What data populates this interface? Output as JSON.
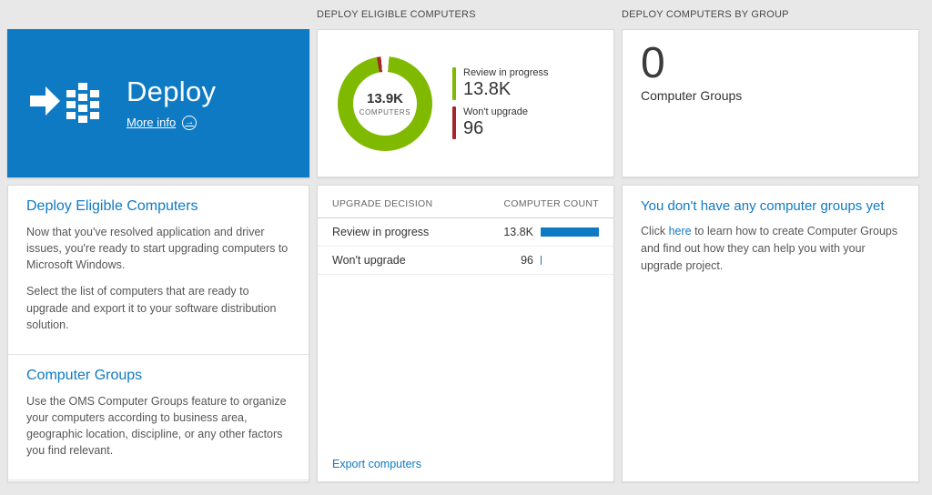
{
  "colors": {
    "accent_blue": "#0f7ac4",
    "tile_blue": "#0f7ac4",
    "green": "#7fba00",
    "red": "#a4262c",
    "bar_blue": "#0f7ac4",
    "page_bg": "#e8e8e8"
  },
  "headers": {
    "middle": "DEPLOY ELIGIBLE COMPUTERS",
    "right": "DEPLOY COMPUTERS BY GROUP"
  },
  "left": {
    "tile": {
      "title": "Deploy",
      "more_info_label": "More info",
      "arrow_glyph": "→"
    },
    "sections": [
      {
        "heading": "Deploy Eligible Computers",
        "paragraphs": [
          "Now that you've resolved application and driver issues, you're ready to start upgrading computers to Microsoft Windows.",
          "Select the list of computers that are ready to upgrade and export it to your software distribution solution."
        ]
      },
      {
        "heading": "Computer Groups",
        "paragraphs": [
          "Use the OMS Computer Groups feature to organize your computers according to business area, geographic location, discipline, or any other factors you find relevant."
        ]
      }
    ]
  },
  "middle": {
    "chart_data": {
      "type": "pie",
      "title": "Deploy Eligible Computers",
      "center_value": "13.9K",
      "center_label": "COMPUTERS",
      "segments": [
        {
          "label": "Review in progress",
          "value": 13800,
          "display": "13.8K",
          "color": "#7fba00"
        },
        {
          "label": "Won't upgrade",
          "value": 96,
          "display": "96",
          "color": "#a4262c"
        }
      ]
    },
    "table": {
      "columns": [
        "UPGRADE DECISION",
        "COMPUTER COUNT"
      ],
      "rows": [
        {
          "label": "Review in progress",
          "value": "13.8K",
          "bar_pct": 100
        },
        {
          "label": "Won't upgrade",
          "value": "96",
          "bar_pct": 2
        }
      ]
    },
    "export_link": "Export computers"
  },
  "right": {
    "stat_value": "0",
    "stat_label": "Computer Groups",
    "empty_heading": "You don't have any computer groups yet",
    "empty_text_before": "Click ",
    "empty_link": "here",
    "empty_text_after": " to learn how to create Computer Groups and find out how they can help you with your upgrade project."
  }
}
